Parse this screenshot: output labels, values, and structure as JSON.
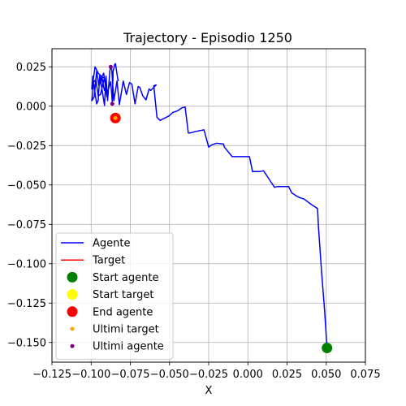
{
  "chart_data": {
    "type": "line",
    "title": "Trajectory - Episodio 1250",
    "xlabel": "X",
    "ylabel": "",
    "xlim": [
      -0.125,
      0.075
    ],
    "ylim": [
      -0.1625,
      0.0365
    ],
    "grid": true,
    "legend_position": "lower left",
    "xticks": [
      -0.125,
      -0.1,
      -0.075,
      -0.05,
      -0.025,
      0.0,
      0.025,
      0.05,
      0.075
    ],
    "xtick_labels": [
      "−0.125",
      "−0.100",
      "−0.075",
      "−0.050",
      "−0.025",
      "0.000",
      "0.025",
      "0.050",
      "0.075"
    ],
    "yticks": [
      0.025,
      0.0,
      -0.025,
      -0.05,
      -0.075,
      -0.1,
      -0.125,
      -0.15
    ],
    "ytick_labels": [
      "0.025",
      "0.000",
      "−0.025",
      "−0.050",
      "−0.075",
      "−0.100",
      "−0.125",
      "−0.150"
    ],
    "series": [
      {
        "name": "Agente",
        "color": "#0000ff",
        "style": "line",
        "points": [
          [
            0.0505,
            -0.1535
          ],
          [
            0.049,
            -0.13
          ],
          [
            0.047,
            -0.105
          ],
          [
            0.046,
            -0.09
          ],
          [
            0.045,
            -0.076
          ],
          [
            0.0445,
            -0.065
          ],
          [
            0.04,
            -0.062
          ],
          [
            0.036,
            -0.059
          ],
          [
            0.033,
            -0.058
          ],
          [
            0.031,
            -0.057
          ],
          [
            0.028,
            -0.055
          ],
          [
            0.026,
            -0.051
          ],
          [
            0.024,
            -0.051
          ],
          [
            0.019,
            -0.051
          ],
          [
            0.017,
            -0.0515
          ],
          [
            0.014,
            -0.047
          ],
          [
            0.01,
            -0.041
          ],
          [
            0.0075,
            -0.0415
          ],
          [
            0.003,
            -0.0415
          ],
          [
            0.001,
            -0.032
          ],
          [
            -0.005,
            -0.032
          ],
          [
            -0.01,
            -0.032
          ],
          [
            -0.015,
            -0.026
          ],
          [
            -0.0155,
            -0.024
          ],
          [
            -0.02,
            -0.0235
          ],
          [
            -0.023,
            -0.0245
          ],
          [
            -0.025,
            -0.026
          ],
          [
            -0.028,
            -0.015
          ],
          [
            -0.033,
            -0.016
          ],
          [
            -0.037,
            -0.017
          ],
          [
            -0.038,
            -0.017
          ],
          [
            -0.04,
            -0.0005
          ],
          [
            -0.042,
            -0.001
          ],
          [
            -0.045,
            -0.003
          ],
          [
            -0.048,
            -0.004
          ],
          [
            -0.05,
            -0.006
          ],
          [
            -0.052,
            -0.007
          ],
          [
            -0.054,
            -0.008
          ],
          [
            -0.056,
            -0.009
          ],
          [
            -0.058,
            -0.007
          ],
          [
            -0.06,
            0.013
          ],
          [
            -0.0585,
            0.0135
          ],
          [
            -0.061,
            0.011
          ],
          [
            -0.062,
            0.01
          ],
          [
            -0.063,
            0.011
          ],
          [
            -0.065,
            0.004
          ],
          [
            -0.067,
            0.0065
          ],
          [
            -0.069,
            0.012
          ],
          [
            -0.07,
            0.0125
          ],
          [
            -0.072,
            0.0015
          ],
          [
            -0.074,
            0.014
          ],
          [
            -0.0755,
            0.015
          ],
          [
            -0.0775,
            0.0075
          ],
          [
            -0.0795,
            0.016
          ],
          [
            -0.082,
            0.001
          ],
          [
            -0.0835,
            0.016
          ],
          [
            -0.0855,
            0.0035
          ],
          [
            -0.087,
            0.0255
          ],
          [
            -0.088,
            0.023
          ],
          [
            -0.0895,
            0.0035
          ],
          [
            -0.0905,
            0.019
          ],
          [
            -0.0915,
            0.0005
          ],
          [
            -0.093,
            0.01
          ],
          [
            -0.0945,
            0.0195
          ],
          [
            -0.0955,
            0.0035
          ],
          [
            -0.0965,
            0.0015
          ],
          [
            -0.098,
            0.012
          ],
          [
            -0.099,
            0.019
          ],
          [
            -0.0995,
            0.011
          ],
          [
            -0.0975,
            0.025
          ],
          [
            -0.0955,
            0.021
          ],
          [
            -0.0935,
            0.019
          ],
          [
            -0.0915,
            0.01
          ],
          [
            -0.093,
            0.018
          ],
          [
            -0.095,
            0.013
          ],
          [
            -0.0965,
            0.022
          ],
          [
            -0.098,
            0.006
          ],
          [
            -0.0995,
            0.0035
          ],
          [
            -0.0985,
            0.015
          ],
          [
            -0.097,
            0.017
          ],
          [
            -0.0955,
            0.0065
          ],
          [
            -0.094,
            0.0075
          ],
          [
            -0.0925,
            0.014
          ],
          [
            -0.0915,
            0.018
          ],
          [
            -0.093,
            0.0185
          ],
          [
            -0.094,
            0.017
          ],
          [
            -0.092,
            0.021
          ],
          [
            -0.09,
            0.006
          ],
          [
            -0.089,
            0.011
          ],
          [
            -0.0875,
            0.0155
          ],
          [
            -0.0865,
            0.0025
          ],
          [
            -0.086,
            0.022
          ],
          [
            -0.085,
            0.0265
          ],
          [
            -0.0845,
            0.027
          ],
          [
            -0.083,
            0.017
          ],
          [
            -0.0825,
            0.016
          ]
        ]
      },
      {
        "name": "Target",
        "color": "#ff0000",
        "style": "line",
        "points": []
      },
      {
        "name": "Start agente",
        "color": "#008000",
        "style": "marker-large",
        "points": [
          [
            0.0505,
            -0.1535
          ]
        ]
      },
      {
        "name": "Start target",
        "color": "#ffff00",
        "style": "marker-large",
        "points": [
          [
            -0.0845,
            -0.0075
          ]
        ]
      },
      {
        "name": "End agente",
        "color": "#ff0000",
        "style": "marker-large",
        "points": [
          [
            -0.0845,
            -0.0075
          ]
        ]
      },
      {
        "name": "Ultimi target",
        "color": "#ffa500",
        "style": "marker-small",
        "points": [
          [
            -0.0845,
            -0.0075
          ]
        ]
      },
      {
        "name": "Ultimi agente",
        "color": "#800080",
        "style": "marker-small",
        "points": [
          [
            -0.0875,
            0.025
          ],
          [
            -0.0865,
            0.0015
          ]
        ]
      }
    ]
  }
}
